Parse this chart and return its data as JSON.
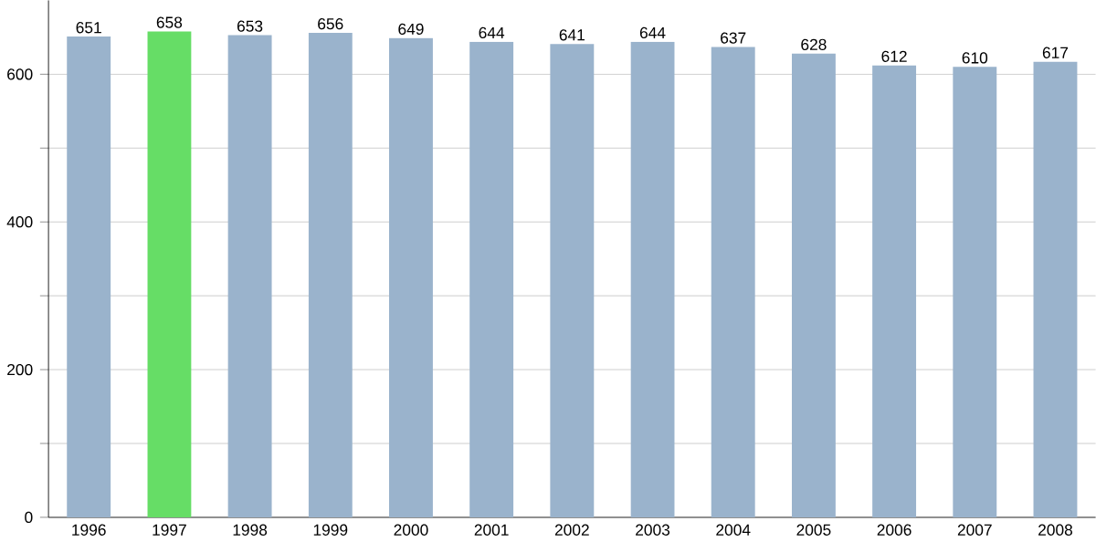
{
  "chart_data": {
    "type": "bar",
    "categories": [
      "1996",
      "1997",
      "1998",
      "1999",
      "2000",
      "2001",
      "2002",
      "2003",
      "2004",
      "2005",
      "2006",
      "2007",
      "2008"
    ],
    "values": [
      651,
      658,
      653,
      656,
      649,
      644,
      641,
      644,
      637,
      628,
      612,
      610,
      617
    ],
    "colors": [
      "#9ab3cc",
      "#66dd66",
      "#9ab3cc",
      "#9ab3cc",
      "#9ab3cc",
      "#9ab3cc",
      "#9ab3cc",
      "#9ab3cc",
      "#9ab3cc",
      "#9ab3cc",
      "#9ab3cc",
      "#9ab3cc",
      "#9ab3cc"
    ],
    "ylim": [
      0,
      700
    ],
    "yticks": [
      0,
      {
        "value": 100,
        "label": null
      },
      200,
      {
        "value": 300,
        "label": null
      },
      400,
      {
        "value": 500,
        "label": null
      },
      600
    ],
    "grid": "y",
    "data_labels": true
  }
}
